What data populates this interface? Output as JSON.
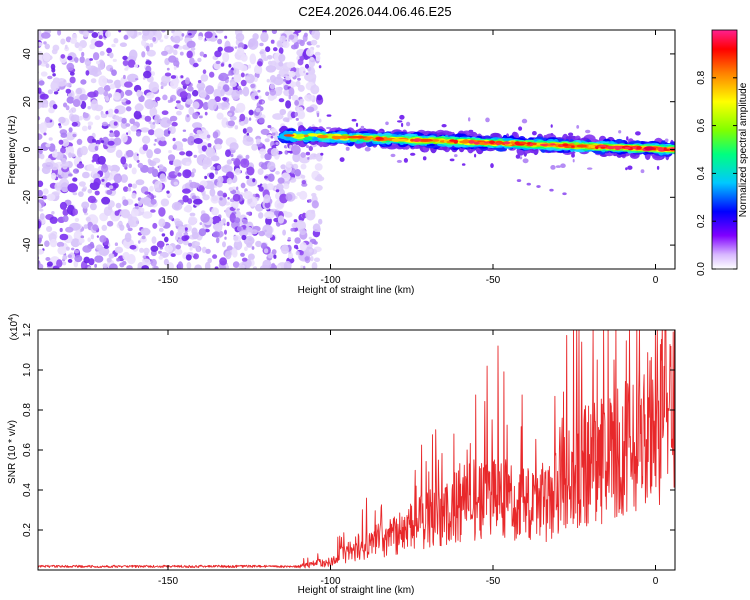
{
  "title": "C2E4.2026.044.06.46.E25",
  "colors": {
    "axis": "#000000",
    "snr_line": "#e8282a",
    "noise": "#8a3ff0",
    "noise_light": "#c9b0f5"
  },
  "chart_data": [
    {
      "type": "heatmap",
      "name": "spectrogram",
      "xlabel": "Height of straight line (km)",
      "ylabel": "Frequency (Hz)",
      "xlim": [
        -190,
        6
      ],
      "ylim": [
        -50,
        50
      ],
      "xticks": [
        -150,
        -100,
        -50,
        0
      ],
      "yticks": [
        -40,
        -20,
        0,
        20,
        40
      ],
      "xtick_labels": [
        "-150",
        "-100",
        "-50",
        "0"
      ],
      "ytick_labels": [
        "-40",
        "-20",
        "0",
        "20",
        "40"
      ],
      "noise_region_km": [
        -190,
        -105
      ],
      "signal_band": {
        "x_start_km": -115,
        "x_end_km": 6,
        "freq_start_hz": 6,
        "freq_end_hz": 0
      },
      "colorbar": {
        "label": "Normalized spectral amplitude",
        "range": [
          0.0,
          1.0
        ],
        "ticks": [
          0.0,
          0.2,
          0.4,
          0.6,
          0.8
        ],
        "tick_labels": [
          "0.0",
          "0.2",
          "0.4",
          "0.6",
          "0.8"
        ],
        "colormap": [
          "#ffffff",
          "#d8b8ff",
          "#8000ff",
          "#0000ff",
          "#00c8ff",
          "#00ff80",
          "#80ff00",
          "#ffff00",
          "#ff8000",
          "#ff0000",
          "#ff2090"
        ]
      }
    },
    {
      "type": "line",
      "name": "snr",
      "xlabel": "Height of straight line (km)",
      "ylabel": "SNR (10 * v/v)",
      "multiplier_label": "(x10",
      "multiplier_exp": "4",
      "multiplier_close": ")",
      "xlim": [
        -190,
        6
      ],
      "ylim": [
        0,
        1.2
      ],
      "xticks": [
        -150,
        -100,
        -50,
        0
      ],
      "yticks": [
        0.2,
        0.4,
        0.6,
        0.8,
        1.0,
        1.2
      ],
      "xtick_labels": [
        "-150",
        "-100",
        "-50",
        "0"
      ],
      "ytick_labels": [
        "0.2",
        "0.4",
        "0.6",
        "0.8",
        "1.0",
        "1.2"
      ],
      "envelope": [
        {
          "x": -190,
          "y": 0.02
        },
        {
          "x": -110,
          "y": 0.02
        },
        {
          "x": -100,
          "y": 0.05
        },
        {
          "x": -90,
          "y": 0.15
        },
        {
          "x": -80,
          "y": 0.2
        },
        {
          "x": -70,
          "y": 0.3
        },
        {
          "x": -60,
          "y": 0.4
        },
        {
          "x": -50,
          "y": 0.45
        },
        {
          "x": -40,
          "y": 0.4
        },
        {
          "x": -32,
          "y": 0.4
        },
        {
          "x": -25,
          "y": 0.6
        },
        {
          "x": -15,
          "y": 0.65
        },
        {
          "x": -5,
          "y": 0.75
        },
        {
          "x": 0,
          "y": 0.9
        },
        {
          "x": 6,
          "y": 0.97
        }
      ],
      "peaks": [
        {
          "x": -48.5,
          "y": 1.12
        },
        {
          "x": -16,
          "y": 1.2
        },
        {
          "x": -8,
          "y": 1.2
        },
        {
          "x": -18,
          "y": 1.05
        },
        {
          "x": -5,
          "y": 1.0
        },
        {
          "x": 2,
          "y": 1.05
        },
        {
          "x": -58,
          "y": 0.6
        },
        {
          "x": -62,
          "y": 0.68
        },
        {
          "x": -75,
          "y": 0.32
        }
      ]
    }
  ]
}
